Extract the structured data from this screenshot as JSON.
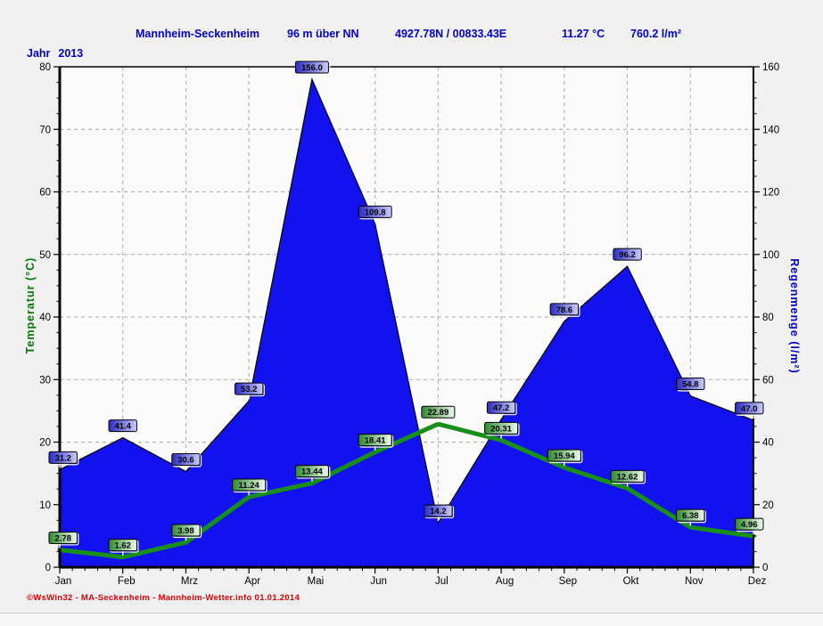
{
  "window": {
    "title_parts": {
      "station": "Mannheim-Seckenheim",
      "altitude": "96 m über NN",
      "coordinates": "4927.78N / 00833.43E",
      "avg_temperature": "11.27 °C",
      "total_rain": "760.2 l/m²"
    },
    "period": {
      "label": "Jahr",
      "value": "2013"
    },
    "footer": "©WsWin32 - MA-Seckenheim - Mannheim-Wetter.info  01.01.2014"
  },
  "chart_data": {
    "type": "area+line",
    "title": "Mannheim-Seckenheim — Jahr 2013",
    "categories": [
      "Jan",
      "Feb",
      "Mrz",
      "Apr",
      "Mai",
      "Jun",
      "Jul",
      "Aug",
      "Sep",
      "Okt",
      "Nov",
      "Dez"
    ],
    "series": [
      {
        "name": "Regenmenge",
        "type": "area",
        "axis": "right",
        "values": [
          31.2,
          41.4,
          30.6,
          53.2,
          156.0,
          109.8,
          14.2,
          47.2,
          78.6,
          96.2,
          54.8,
          47.0
        ],
        "value_labels": [
          "31.2",
          "41.4",
          "30.6",
          "53.2",
          "156.0",
          "109.8",
          "14.2",
          "47.2",
          "78.6",
          "96.2",
          "54.8",
          "47.0"
        ]
      },
      {
        "name": "Temperatur",
        "type": "line",
        "axis": "left",
        "values": [
          2.78,
          1.62,
          3.98,
          11.24,
          13.44,
          18.41,
          22.89,
          20.31,
          15.94,
          12.62,
          6.38,
          4.96
        ],
        "value_labels": [
          "2.78",
          "1.62",
          "3.98",
          "11.24",
          "13.44",
          "18.41",
          "22.89",
          "20.31",
          "15.94",
          "12.62",
          "6.38",
          "4.96"
        ]
      }
    ],
    "left_axis": {
      "label": "Temperatur  (°C)",
      "min": 0,
      "max": 80,
      "step": 10
    },
    "right_axis": {
      "label": "Regenmenge  (l/m²)",
      "min": 0,
      "max": 160,
      "step": 20
    },
    "grid": true,
    "legend": "none"
  },
  "colors": {
    "page_bg": "#f1f1f1",
    "plot_bg": "#fbfbfb",
    "header_text": "#0000cc",
    "period_text": "#0000cc",
    "rain_fill": "#1212ee",
    "rain_label_dark": "#2a2ac4",
    "rain_label_light": "#ccccfa",
    "temp_line": "#189018",
    "temp_label_dark": "#2d8a2d",
    "temp_label_light": "#eefbee",
    "left_axis_title": "#007a00",
    "right_axis_title": "#0000cc",
    "grid_line": "#a8a8a8",
    "axis_line": "#000000",
    "footer_text": "#dd0000"
  }
}
